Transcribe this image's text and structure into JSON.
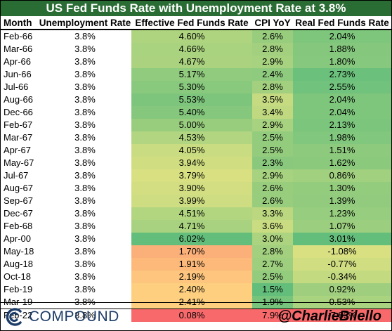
{
  "title": "US Fed Funds Rate with Unemployment Rate at 3.8%",
  "brand": {
    "name": "COMPOUND",
    "handle": "@CharlieBilello",
    "logo_icon": "compound-c-icon",
    "logo_color": "#1d3d68"
  },
  "colors": {
    "title_bg": "#2a6d34"
  },
  "chart_data": {
    "type": "table",
    "title": "US Fed Funds Rate with Unemployment Rate at 3.8%",
    "columns": [
      "Month",
      "Unemployment Rate",
      "Effective Fed Funds Rate",
      "CPI YoY",
      "Real Fed Funds Rate"
    ],
    "rows": [
      {
        "month": "Feb-66",
        "unemployment": "3.8%",
        "effr": "4.60%",
        "cpi": "2.6%",
        "real": "2.04%"
      },
      {
        "month": "Mar-66",
        "unemployment": "3.8%",
        "effr": "4.66%",
        "cpi": "2.8%",
        "real": "1.88%"
      },
      {
        "month": "Apr-66",
        "unemployment": "3.8%",
        "effr": "4.67%",
        "cpi": "2.9%",
        "real": "1.80%"
      },
      {
        "month": "Jun-66",
        "unemployment": "3.8%",
        "effr": "5.17%",
        "cpi": "2.4%",
        "real": "2.73%"
      },
      {
        "month": "Jul-66",
        "unemployment": "3.8%",
        "effr": "5.30%",
        "cpi": "2.8%",
        "real": "2.55%"
      },
      {
        "month": "Aug-66",
        "unemployment": "3.8%",
        "effr": "5.53%",
        "cpi": "3.5%",
        "real": "2.04%"
      },
      {
        "month": "Dec-66",
        "unemployment": "3.8%",
        "effr": "5.40%",
        "cpi": "3.4%",
        "real": "2.04%"
      },
      {
        "month": "Feb-67",
        "unemployment": "3.8%",
        "effr": "5.00%",
        "cpi": "2.9%",
        "real": "2.13%"
      },
      {
        "month": "Mar-67",
        "unemployment": "3.8%",
        "effr": "4.53%",
        "cpi": "2.5%",
        "real": "1.98%"
      },
      {
        "month": "Apr-67",
        "unemployment": "3.8%",
        "effr": "4.05%",
        "cpi": "2.5%",
        "real": "1.51%"
      },
      {
        "month": "May-67",
        "unemployment": "3.8%",
        "effr": "3.94%",
        "cpi": "2.3%",
        "real": "1.62%"
      },
      {
        "month": "Jul-67",
        "unemployment": "3.8%",
        "effr": "3.79%",
        "cpi": "2.9%",
        "real": "0.86%"
      },
      {
        "month": "Aug-67",
        "unemployment": "3.8%",
        "effr": "3.90%",
        "cpi": "2.6%",
        "real": "1.30%"
      },
      {
        "month": "Sep-67",
        "unemployment": "3.8%",
        "effr": "3.99%",
        "cpi": "2.6%",
        "real": "1.39%"
      },
      {
        "month": "Dec-67",
        "unemployment": "3.8%",
        "effr": "4.51%",
        "cpi": "3.3%",
        "real": "1.23%"
      },
      {
        "month": "Feb-68",
        "unemployment": "3.8%",
        "effr": "4.71%",
        "cpi": "3.6%",
        "real": "1.07%"
      },
      {
        "month": "Apr-00",
        "unemployment": "3.8%",
        "effr": "6.02%",
        "cpi": "3.0%",
        "real": "3.01%"
      },
      {
        "month": "May-18",
        "unemployment": "3.8%",
        "effr": "1.70%",
        "cpi": "2.8%",
        "real": "-1.08%"
      },
      {
        "month": "Aug-18",
        "unemployment": "3.8%",
        "effr": "1.91%",
        "cpi": "2.7%",
        "real": "-0.77%"
      },
      {
        "month": "Oct-18",
        "unemployment": "3.8%",
        "effr": "2.19%",
        "cpi": "2.5%",
        "real": "-0.34%"
      },
      {
        "month": "Feb-19",
        "unemployment": "3.8%",
        "effr": "2.40%",
        "cpi": "1.5%",
        "real": "0.92%"
      },
      {
        "month": "Mar-19",
        "unemployment": "3.8%",
        "effr": "2.41%",
        "cpi": "1.9%",
        "real": "0.53%"
      },
      {
        "month": "Feb-22",
        "unemployment": "3.8%",
        "effr": "0.08%",
        "cpi": "7.9%",
        "real": "-7.83%"
      }
    ],
    "color_scales": {
      "effr": {
        "min_color": "#f8696b",
        "mid_color": "#ffeb84",
        "max_color": "#63be7b"
      },
      "cpi": {
        "min_color": "#63be7b",
        "mid_color": "#ffeb84",
        "max_color": "#f8696b"
      },
      "real": {
        "min_color": "#f8696b",
        "mid_color": "#ffeb84",
        "max_color": "#63be7b"
      }
    }
  }
}
